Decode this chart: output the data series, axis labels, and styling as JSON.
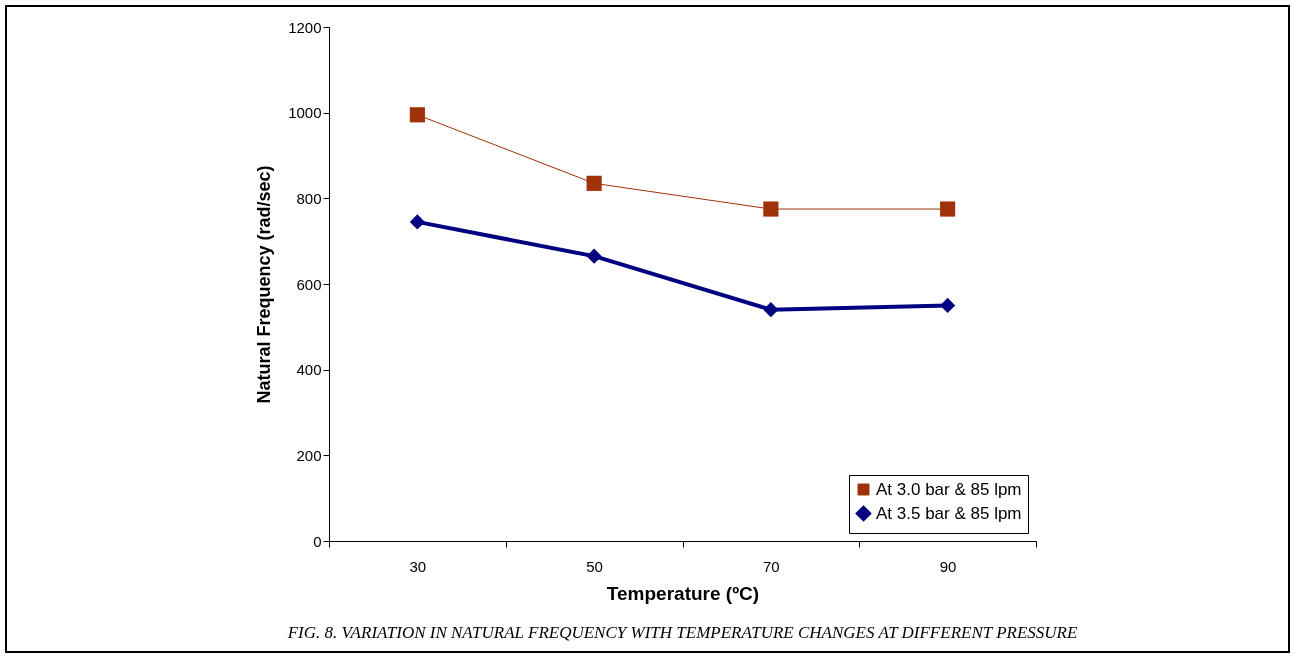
{
  "chart_data": {
    "type": "line",
    "xlabel": "Temperature (ºC)",
    "ylabel": "Natural Frequency (rad/sec)",
    "categories": [
      "30",
      "50",
      "70",
      "90"
    ],
    "series": [
      {
        "name": "At 3.0 bar & 85 lpm",
        "color": "#a0320a",
        "marker": "square",
        "values": [
          995,
          835,
          775,
          775
        ]
      },
      {
        "name": "At 3.5 bar & 85 lpm",
        "color": "#000080",
        "marker": "diamond",
        "values": [
          745,
          665,
          540,
          550
        ]
      }
    ],
    "ylim": [
      0,
      1200
    ],
    "yticks": [
      0,
      200,
      400,
      600,
      800,
      1000,
      1200
    ],
    "grid": false,
    "legend": "bottom right",
    "annotations": [
      "FIG. 8. VARIATION IN NATURAL FREQUENCY WITH TEMPERATURE CHANGES AT DIFFERENT PRESSURE"
    ]
  }
}
